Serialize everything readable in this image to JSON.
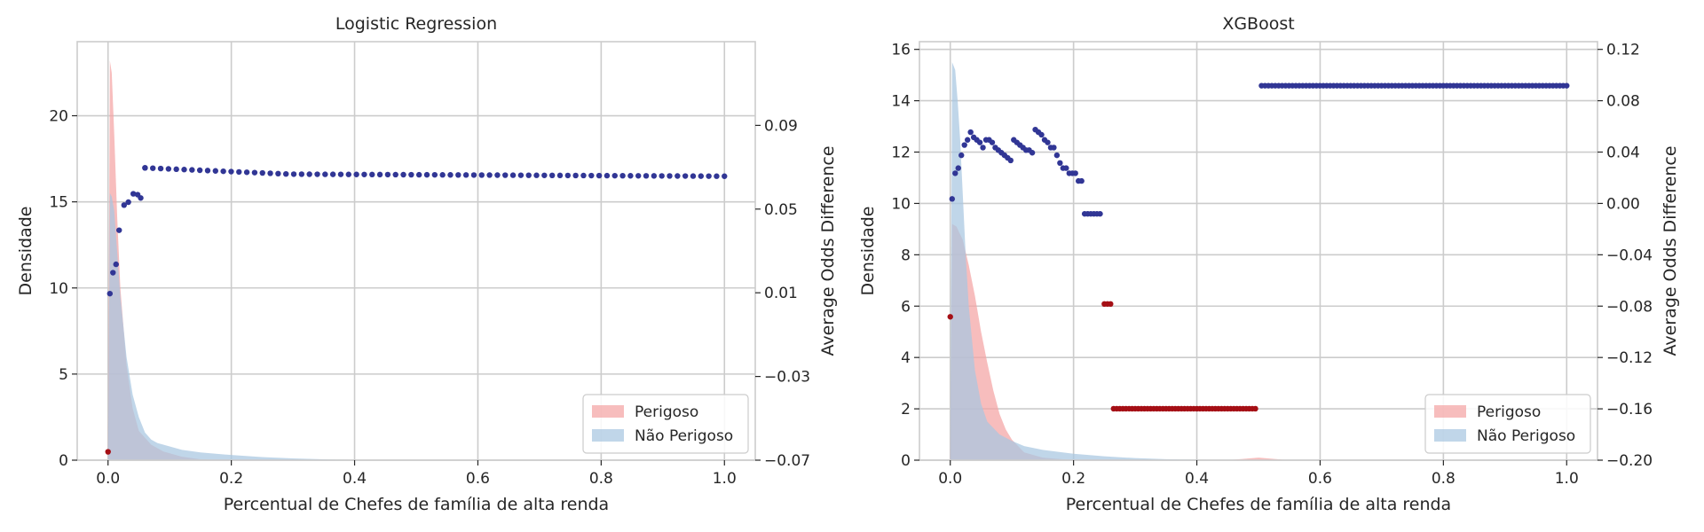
{
  "chart_data": [
    {
      "type": "area",
      "title": "Logistic Regression",
      "xlabel": "Percentual de Chefes de família de alta renda",
      "ylabel": "Densidade",
      "y2label": "Average Odds Difference",
      "xlim": [
        -0.05,
        1.05
      ],
      "ylim": [
        0,
        24.3
      ],
      "y2lim": [
        -0.07,
        0.13
      ],
      "xticks": [
        0.0,
        0.2,
        0.4,
        0.6,
        0.8,
        1.0
      ],
      "xtick_labels": [
        "0.0",
        "0.2",
        "0.4",
        "0.6",
        "0.8",
        "1.0"
      ],
      "yticks": [
        0,
        5,
        10,
        15,
        20
      ],
      "ytick_labels": [
        "0",
        "5",
        "10",
        "15",
        "20"
      ],
      "y2ticks": [
        -0.07,
        -0.03,
        0.01,
        0.05,
        0.09
      ],
      "y2tick_labels": [
        "−0.07",
        "−0.03",
        "0.01",
        "0.05",
        "0.09"
      ],
      "grid": true,
      "legend_position": "lower-right",
      "series": [
        {
          "name": "Perigoso",
          "kind": "density",
          "color": "#f4a3a3",
          "x": [
            0.0,
            0.003,
            0.006,
            0.01,
            0.015,
            0.02,
            0.03,
            0.04,
            0.05,
            0.07,
            0.09,
            0.12,
            0.15,
            0.2,
            0.3
          ],
          "values": [
            0,
            23.2,
            22.5,
            19,
            14,
            10,
            5.5,
            3,
            1.7,
            0.9,
            0.5,
            0.2,
            0.05,
            0,
            0
          ]
        },
        {
          "name": "Não Perigoso",
          "kind": "density",
          "color": "#a8c6e0",
          "x": [
            0.0,
            0.003,
            0.006,
            0.01,
            0.015,
            0.02,
            0.03,
            0.04,
            0.05,
            0.06,
            0.07,
            0.08,
            0.1,
            0.12,
            0.15,
            0.2,
            0.25,
            0.3,
            0.35,
            0.4,
            0.45
          ],
          "values": [
            0,
            15.5,
            15.3,
            14.5,
            12,
            9.5,
            6,
            3.8,
            2.5,
            1.6,
            1.2,
            1.0,
            0.8,
            0.6,
            0.45,
            0.3,
            0.18,
            0.1,
            0.05,
            0.02,
            0
          ]
        },
        {
          "name": "",
          "kind": "scatter-negative",
          "color": "#a50f15",
          "x": [
            0.0
          ],
          "values": [
            -0.066
          ]
        },
        {
          "name": "",
          "kind": "scatter",
          "color": "#313695",
          "x": [
            0.003,
            0.008,
            0.013,
            0.018,
            0.026,
            0.033,
            0.041,
            0.048,
            0.053,
            0.06
          ],
          "values": [
            0.0096,
            0.0196,
            0.0236,
            0.0399,
            0.0519,
            0.0533,
            0.0573,
            0.0569,
            0.0553,
            0.0697
          ],
          "plateau": {
            "x_start": 0.06,
            "x_end": 1.0,
            "count": 75,
            "y_start": 0.0697,
            "y_mid": 0.0667,
            "y_end": 0.0657
          }
        }
      ]
    },
    {
      "type": "area",
      "title": "XGBoost",
      "xlabel": "Percentual de Chefes de família de alta renda",
      "ylabel": "Densidade",
      "y2label": "Average Odds Difference",
      "xlim": [
        -0.05,
        1.05
      ],
      "ylim": [
        0,
        16.3
      ],
      "y2lim": [
        -0.2,
        0.126
      ],
      "xticks": [
        0.0,
        0.2,
        0.4,
        0.6,
        0.8,
        1.0
      ],
      "xtick_labels": [
        "0.0",
        "0.2",
        "0.4",
        "0.6",
        "0.8",
        "1.0"
      ],
      "yticks": [
        0,
        2,
        4,
        6,
        8,
        10,
        12,
        14,
        16
      ],
      "ytick_labels": [
        "0",
        "2",
        "4",
        "6",
        "8",
        "10",
        "12",
        "14",
        "16"
      ],
      "y2ticks": [
        -0.2,
        -0.16,
        -0.12,
        -0.08,
        -0.04,
        0.0,
        0.04,
        0.08,
        0.12
      ],
      "y2tick_labels": [
        "−0.20",
        "−0.16",
        "−0.12",
        "−0.08",
        "−0.04",
        "0.00",
        "0.04",
        "0.08",
        "0.12"
      ],
      "grid": true,
      "legend_position": "lower-right",
      "series": [
        {
          "name": "Perigoso",
          "kind": "density",
          "color": "#f4a3a3",
          "x": [
            0.0,
            0.003,
            0.01,
            0.02,
            0.03,
            0.04,
            0.05,
            0.06,
            0.07,
            0.08,
            0.09,
            0.1,
            0.12,
            0.15,
            0.2,
            0.3,
            0.45,
            0.5,
            0.55
          ],
          "values": [
            0,
            9.2,
            9.1,
            8.6,
            7.6,
            6.4,
            5.0,
            3.8,
            2.7,
            1.8,
            1.2,
            0.8,
            0.3,
            0.1,
            0,
            0,
            0,
            0.1,
            0
          ]
        },
        {
          "name": "Não Perigoso",
          "kind": "density",
          "color": "#a8c6e0",
          "x": [
            0.0,
            0.003,
            0.008,
            0.012,
            0.016,
            0.02,
            0.025,
            0.03,
            0.04,
            0.05,
            0.06,
            0.08,
            0.1,
            0.12,
            0.15,
            0.2,
            0.25,
            0.3,
            0.35,
            0.4,
            0.45,
            0.5
          ],
          "values": [
            0,
            15.5,
            15.2,
            14,
            12.5,
            10.5,
            8.0,
            6.0,
            3.5,
            2.2,
            1.5,
            1.0,
            0.75,
            0.55,
            0.4,
            0.25,
            0.15,
            0.08,
            0.04,
            0.02,
            0.01,
            0
          ]
        },
        {
          "name": "",
          "kind": "scatter-negative",
          "color": "#a50f15",
          "x": [
            0.0,
            0.25,
            0.255,
            0.26
          ],
          "values": [
            -0.0883,
            -0.0783,
            -0.0783,
            -0.0783
          ],
          "run": {
            "x_start": 0.265,
            "x_end": 0.495,
            "count": 47,
            "y": -0.1599
          }
        },
        {
          "name": "",
          "kind": "scatter",
          "color": "#313695",
          "x": [
            0.003,
            0.008,
            0.013,
            0.018,
            0.023,
            0.028,
            0.033,
            0.038,
            0.043,
            0.048,
            0.053,
            0.058,
            0.063,
            0.068,
            0.073,
            0.078,
            0.083,
            0.088,
            0.093,
            0.098,
            0.103,
            0.108,
            0.113,
            0.118,
            0.123,
            0.128,
            0.133,
            0.138,
            0.143,
            0.148,
            0.153,
            0.158,
            0.163,
            0.168,
            0.173,
            0.178,
            0.183,
            0.188,
            0.193,
            0.198,
            0.203,
            0.208,
            0.213,
            0.218,
            0.223,
            0.228,
            0.233,
            0.238,
            0.243
          ],
          "values": [
            0.0035,
            0.0235,
            0.0275,
            0.0375,
            0.0455,
            0.0495,
            0.0555,
            0.0515,
            0.0495,
            0.0475,
            0.0435,
            0.0495,
            0.0495,
            0.0475,
            0.0435,
            0.0415,
            0.0395,
            0.0375,
            0.0355,
            0.0335,
            0.0495,
            0.0475,
            0.0455,
            0.0435,
            0.0415,
            0.0415,
            0.0395,
            0.0575,
            0.0555,
            0.0535,
            0.0495,
            0.0475,
            0.0435,
            0.0435,
            0.0375,
            0.0315,
            0.0275,
            0.0275,
            0.0235,
            0.0235,
            0.0235,
            0.0175,
            0.0175,
            -0.0081,
            -0.0081,
            -0.0081,
            -0.0081,
            -0.0081,
            -0.0081
          ],
          "plateau": {
            "x_start": 0.505,
            "x_end": 1.0,
            "count": 90,
            "y_start": 0.0917,
            "y_mid": 0.0917,
            "y_end": 0.0917
          }
        }
      ]
    }
  ]
}
